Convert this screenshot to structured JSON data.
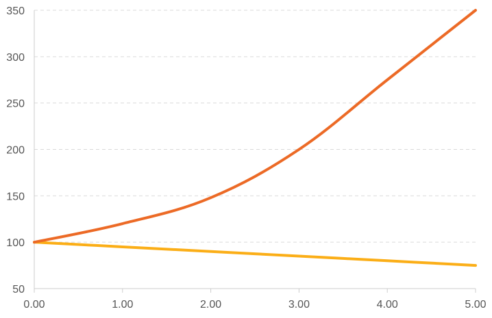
{
  "chart_data": {
    "type": "line",
    "title": "",
    "xlabel": "",
    "ylabel": "",
    "x": [
      0,
      1,
      2,
      3,
      4,
      5
    ],
    "x_tick_labels": [
      "0.00",
      "1.00",
      "2.00",
      "3.00",
      "4.00",
      "5.00"
    ],
    "xlim": [
      0,
      5
    ],
    "y_ticks": [
      50,
      100,
      150,
      200,
      250,
      300,
      350
    ],
    "y_tick_labels": [
      "50",
      "100",
      "150",
      "200",
      "250",
      "300",
      "350"
    ],
    "ylim": [
      50,
      350
    ],
    "grid": true,
    "legend": "none",
    "series": [
      {
        "color": "#ec6a26",
        "values": [
          100,
          120,
          148,
          200,
          275,
          350
        ]
      },
      {
        "color": "#fbae17",
        "values": [
          100,
          95,
          90,
          85,
          80,
          75
        ]
      }
    ]
  }
}
